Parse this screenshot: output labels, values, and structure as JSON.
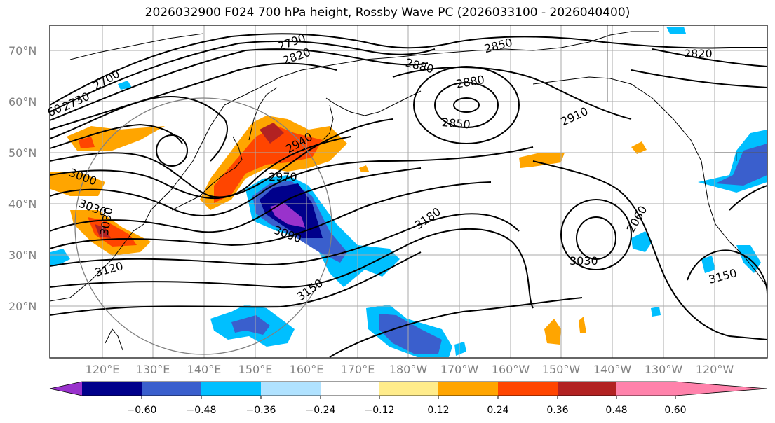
{
  "title": "2026032900 F024 700 hPa height, Rossby Wave PC (2026033100 - 2026040400)",
  "lat_labels": [
    "70°N",
    "60°N",
    "50°N",
    "40°N",
    "30°N",
    "20°N"
  ],
  "lon_labels": [
    "120°E",
    "130°E",
    "140°E",
    "150°E",
    "160°E",
    "170°E",
    "180°W",
    "170°W",
    "160°W",
    "150°W",
    "140°W",
    "130°W",
    "120°W"
  ],
  "contour_labels": [
    "2790",
    "2820",
    "2850",
    "2820",
    "2700",
    "2730",
    "60",
    "2880",
    "2880",
    "2910",
    "2850",
    "2940",
    "2970",
    "3000",
    "3030",
    "3030",
    "3090",
    "3180",
    "2060",
    "3030",
    "3120",
    "3150",
    "3150"
  ],
  "colorbar": {
    "ticks": [
      "−0.60",
      "−0.48",
      "−0.36",
      "−0.24",
      "−0.12",
      "0.12",
      "0.24",
      "0.36",
      "0.48",
      "0.60"
    ],
    "colors": [
      "#9932CC",
      "#00008B",
      "#3A5FCD",
      "#00BFFF",
      "#B0E2FF",
      "#FFFFFF",
      "#FFEC8B",
      "#FFA500",
      "#FF4500",
      "#B22222",
      "#FF82AB"
    ]
  },
  "shading_colors": {
    "neg_strong": "#9932CC",
    "neg_4": "#00008B",
    "neg_3": "#3A5FCD",
    "neg_2": "#00BFFF",
    "neg_1": "#B0E2FF",
    "pos_1": "#FFEC8B",
    "pos_2": "#FFA500",
    "pos_3": "#FF4500",
    "pos_4": "#B22222",
    "pos_strong": "#FF82AB"
  }
}
